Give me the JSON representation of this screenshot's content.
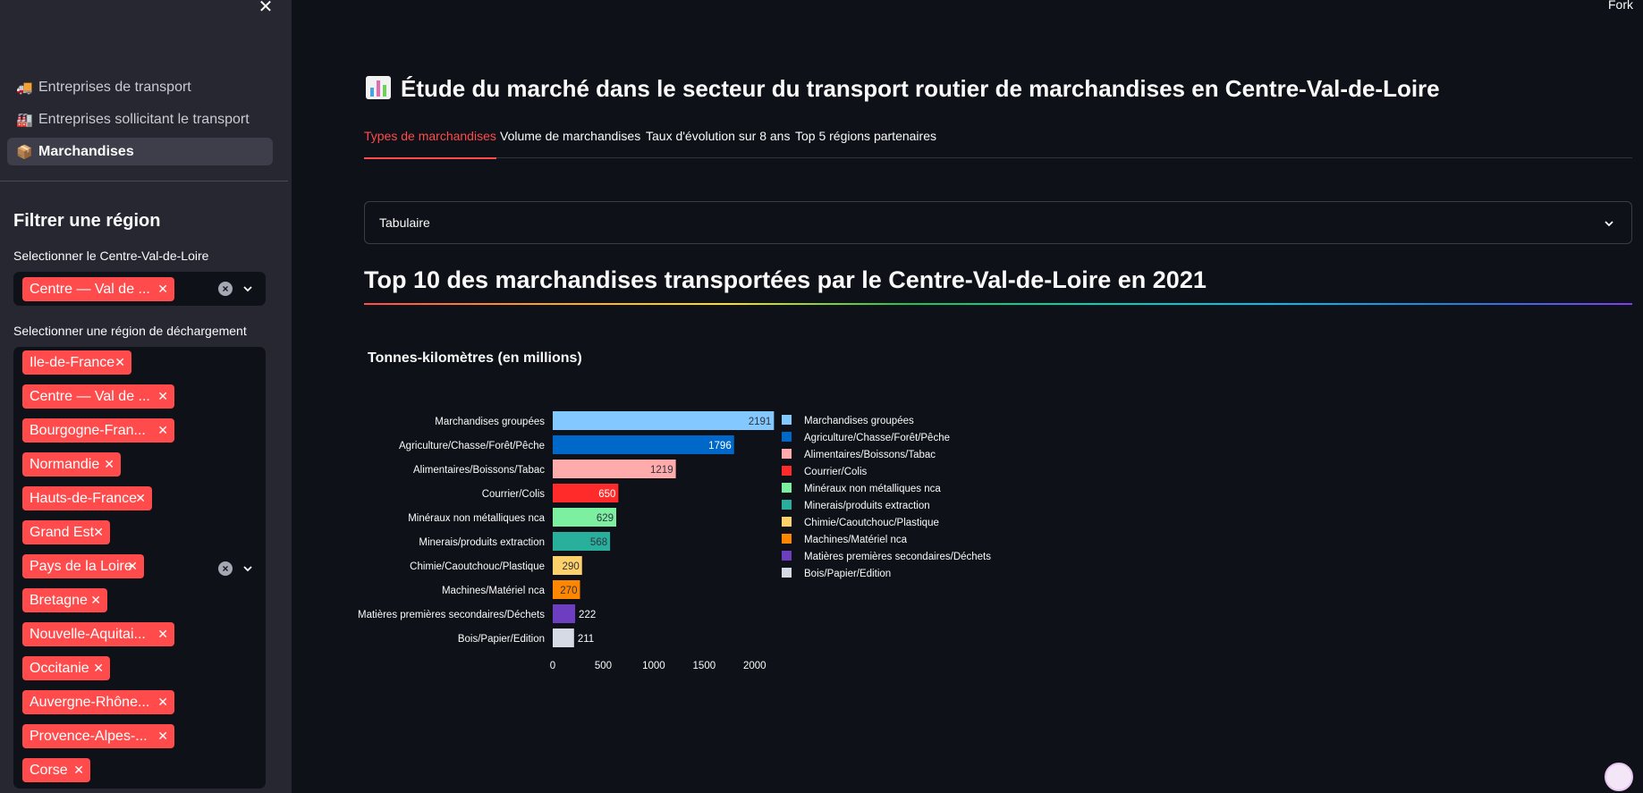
{
  "sidebar": {
    "close_icon": "close-icon",
    "nav": [
      {
        "emoji": "🚚",
        "label": "Entreprises de transport",
        "active": false
      },
      {
        "emoji": "🏭",
        "label": "Entreprises sollicitant le transport",
        "active": false
      },
      {
        "emoji": "📦",
        "label": "Marchandises",
        "active": true
      }
    ],
    "filter_title": "Filtrer une région",
    "select1_label": "Selectionner le Centre-Val-de-Loire",
    "select1_chips": [
      "Centre — Val de ..."
    ],
    "select2_label": "Selectionner une région de déchargement",
    "select2_chips": [
      "Ile-de-France",
      "Centre — Val de ...",
      "Bourgogne-Fran...",
      "Normandie",
      "Hauts-de-France",
      "Grand Est",
      "Pays de la Loire",
      "Bretagne",
      "Nouvelle-Aquitai...",
      "Occitanie",
      "Auvergne-Rhône...",
      "Provence-Alpes-...",
      "Corse"
    ]
  },
  "header": {
    "fork_label": "Fork"
  },
  "main": {
    "title": "Étude du marché dans le secteur du transport routier de marchandises en Centre-Val-de-Loire",
    "tabs": [
      "Types de marchandises",
      "Volume de marchandises",
      "Taux d'évolution sur 8 ans",
      "Top 5 régions partenaires"
    ],
    "expander_label": "Tabulaire",
    "section_title": "Top 10 des marchandises transportées par le Centre-Val-de-Loire en 2021",
    "chart_title": "Tonnes-kilomètres (en millions)"
  },
  "colors": {
    "accent": "#ff4b4b",
    "background": "#0e1117",
    "sidebar": "#262730"
  },
  "chart_data": {
    "type": "bar",
    "orientation": "horizontal",
    "title": "Tonnes-kilomètres (en millions)",
    "categories": [
      "Marchandises groupées",
      "Agriculture/Chasse/Forêt/Pêche",
      "Alimentaires/Boissons/Tabac",
      "Courrier/Colis",
      "Minéraux non métalliques nca",
      "Minerais/produits extraction",
      "Chimie/Caoutchouc/Plastique",
      "Machines/Matériel nca",
      "Matières premières secondaires/Déchets",
      "Bois/Papier/Edition"
    ],
    "values": [
      2191,
      1796,
      1219,
      650,
      629,
      568,
      290,
      270,
      222,
      211
    ],
    "colors": [
      "#83c9ff",
      "#0068c9",
      "#ffabab",
      "#ff2b2b",
      "#7defa1",
      "#29b09d",
      "#ffd16a",
      "#ff8700",
      "#6d3fc0",
      "#d5dae5"
    ],
    "label_colors": [
      "#31333f",
      "#ffffff",
      "#31333f",
      "#ffffff",
      "#31333f",
      "#31333f",
      "#31333f",
      "#31333f",
      "#fafafa",
      "#fafafa"
    ],
    "label_inside": [
      true,
      true,
      true,
      true,
      true,
      true,
      true,
      true,
      false,
      false
    ],
    "xticks": [
      0,
      500,
      1000,
      1500,
      2000
    ],
    "xlim": [
      0,
      2250
    ],
    "legend": "right",
    "grid": false
  }
}
